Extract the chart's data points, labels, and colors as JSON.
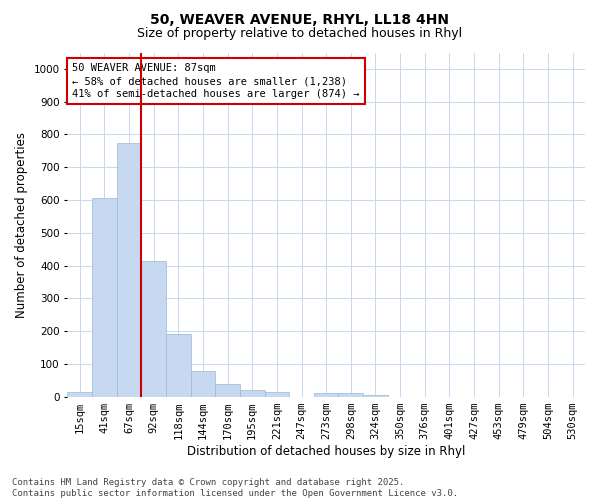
{
  "title_line1": "50, WEAVER AVENUE, RHYL, LL18 4HN",
  "title_line2": "Size of property relative to detached houses in Rhyl",
  "xlabel": "Distribution of detached houses by size in Rhyl",
  "ylabel": "Number of detached properties",
  "bar_color": "#c6d9f0",
  "bar_edge_color": "#9ab8d8",
  "background_color": "#ffffff",
  "plot_bg_color": "#ffffff",
  "grid_color": "#c8d8f0",
  "categories": [
    "15sqm",
    "41sqm",
    "67sqm",
    "92sqm",
    "118sqm",
    "144sqm",
    "170sqm",
    "195sqm",
    "221sqm",
    "247sqm",
    "273sqm",
    "298sqm",
    "324sqm",
    "350sqm",
    "376sqm",
    "401sqm",
    "427sqm",
    "453sqm",
    "479sqm",
    "504sqm",
    "530sqm"
  ],
  "values": [
    14,
    605,
    775,
    415,
    192,
    78,
    38,
    20,
    15,
    0,
    12,
    10,
    5,
    0,
    0,
    0,
    0,
    0,
    0,
    0,
    0
  ],
  "ylim": [
    0,
    1050
  ],
  "yticks": [
    0,
    100,
    200,
    300,
    400,
    500,
    600,
    700,
    800,
    900,
    1000
  ],
  "vline_index": 3,
  "annotation_text_line1": "50 WEAVER AVENUE: 87sqm",
  "annotation_text_line2": "← 58% of detached houses are smaller (1,238)",
  "annotation_text_line3": "41% of semi-detached houses are larger (874) →",
  "annotation_box_color": "#ffffff",
  "annotation_border_color": "#cc0000",
  "vline_color": "#cc0000",
  "footer_line1": "Contains HM Land Registry data © Crown copyright and database right 2025.",
  "footer_line2": "Contains public sector information licensed under the Open Government Licence v3.0.",
  "title_fontsize": 10,
  "subtitle_fontsize": 9,
  "axis_label_fontsize": 8.5,
  "tick_fontsize": 7.5,
  "annotation_fontsize": 7.5,
  "footer_fontsize": 6.5
}
